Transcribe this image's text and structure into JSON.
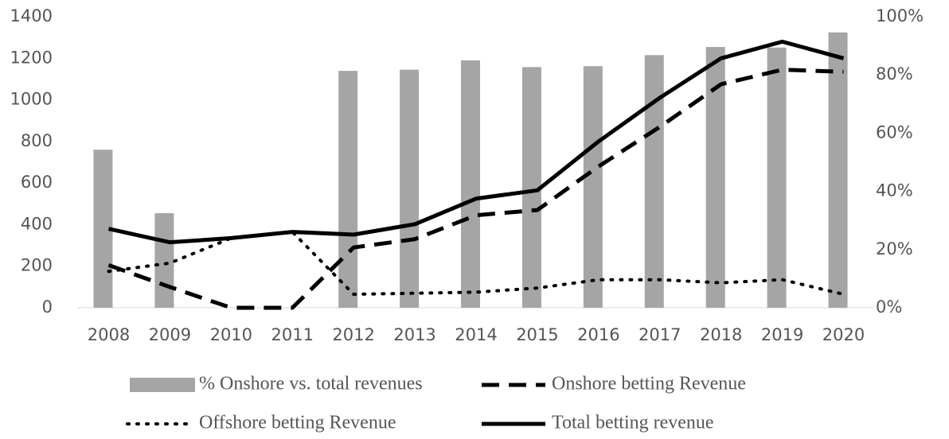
{
  "chart_data": {
    "type": "combo",
    "categories": [
      "2008",
      "2009",
      "2010",
      "2011",
      "2012",
      "2013",
      "2014",
      "2015",
      "2016",
      "2017",
      "2018",
      "2019",
      "2020"
    ],
    "series": [
      {
        "name": "% Onshore vs. total revenues",
        "type": "bar",
        "axis": "y2",
        "color": "#a5a5a5",
        "values": [
          54.3,
          32.5,
          0,
          0,
          81.4,
          81.8,
          85,
          82.7,
          83,
          86.8,
          89.6,
          89.4,
          94.6
        ]
      },
      {
        "name": "Onshore betting Revenue",
        "type": "line",
        "dash": "dashed",
        "color": "#000000",
        "values": [
          205,
          100,
          0,
          0,
          290,
          330,
          445,
          470,
          680,
          870,
          1075,
          1145,
          1135
        ]
      },
      {
        "name": "Offshore betting Revenue",
        "type": "line",
        "dash": "dotted",
        "color": "#000000",
        "values": [
          175,
          215,
          335,
          365,
          65,
          70,
          75,
          95,
          135,
          135,
          120,
          135,
          65
        ]
      },
      {
        "name": "Total betting revenue",
        "type": "line",
        "dash": "solid",
        "color": "#000000",
        "values": [
          380,
          315,
          335,
          365,
          352,
          402,
          525,
          565,
          800,
          1010,
          1200,
          1280,
          1200
        ]
      }
    ],
    "ylim": [
      0,
      1400
    ],
    "yticks": [
      0,
      200,
      400,
      600,
      800,
      1000,
      1200,
      1400
    ],
    "y2lim": [
      0,
      100
    ],
    "y2ticks": [
      {
        "value": 0,
        "label": "0%"
      },
      {
        "value": 20,
        "label": "20%"
      },
      {
        "value": 40,
        "label": "40%"
      },
      {
        "value": 60,
        "label": "60%"
      },
      {
        "value": 80,
        "label": "80%"
      },
      {
        "value": 100,
        "label": "100%"
      }
    ],
    "grid": false,
    "legend": "bottom"
  }
}
